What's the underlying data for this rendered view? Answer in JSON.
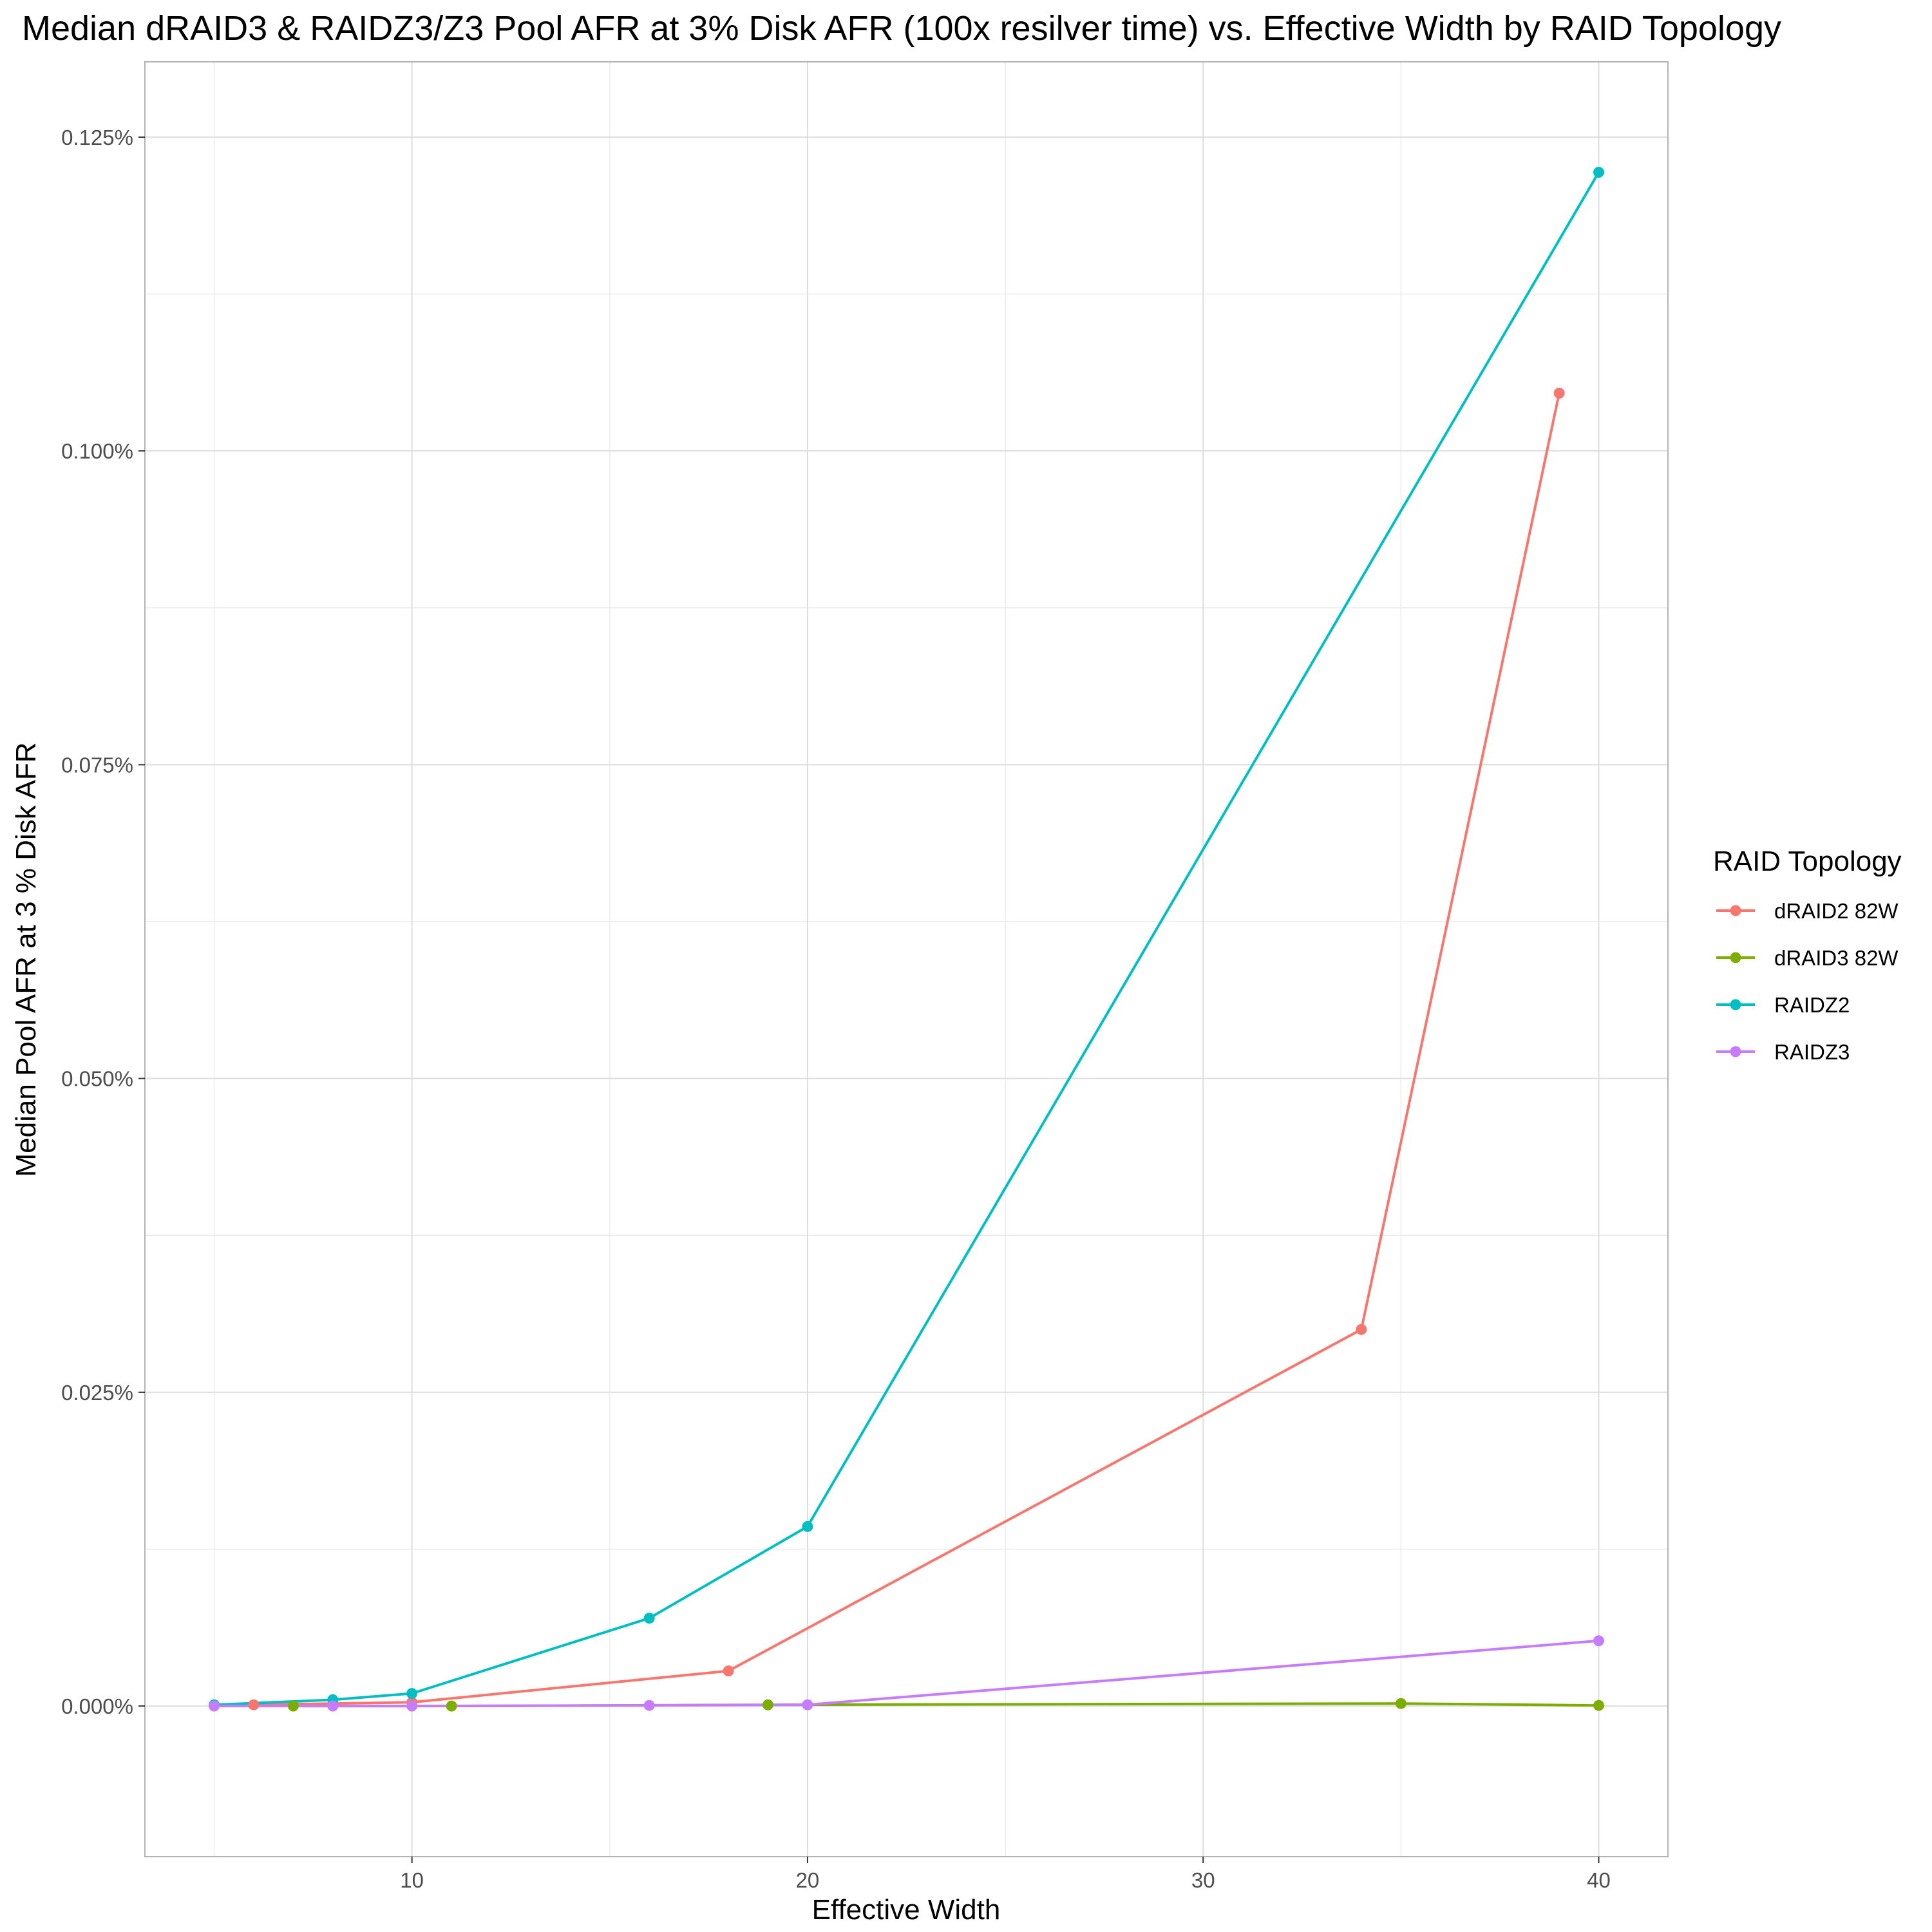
{
  "chart_data": {
    "type": "line",
    "title": "Median dRAID3 & RAIDZ3/Z3 Pool AFR at 3% Disk AFR  (100x resilver time) vs. Effective Width by RAID Topology",
    "xlabel": "Effective Width",
    "ylabel": "Median Pool AFR at  3 % Disk AFR",
    "xlim": [
      3.25,
      41.75
    ],
    "ylim": [
      -0.00012,
      0.00131
    ],
    "x_ticks": [
      10,
      20,
      30,
      40
    ],
    "x_tick_labels": [
      "10",
      "20",
      "30",
      "40"
    ],
    "y_ticks": [
      0,
      0.00025,
      0.0005,
      0.00075,
      0.001,
      0.00125
    ],
    "y_tick_labels": [
      "0.000%",
      "0.025%",
      "0.050%",
      "0.075%",
      "0.100%",
      "0.125%"
    ],
    "x_minor_ticks": [
      5,
      15,
      25,
      35
    ],
    "y_minor_ticks": [
      0.000125,
      0.000375,
      0.000625,
      0.000875,
      0.001125
    ],
    "grid": true,
    "legend": {
      "title": "RAID Topology",
      "placement": "right"
    },
    "series": [
      {
        "name": "dRAID2 82W",
        "color": "#F8766D",
        "points": [
          {
            "x": 6,
            "y": 1e-06
          },
          {
            "x": 10,
            "y": 3e-06
          },
          {
            "x": 18,
            "y": 2.8e-05
          },
          {
            "x": 34,
            "y": 0.0003
          },
          {
            "x": 39,
            "y": 0.001046
          }
        ]
      },
      {
        "name": "dRAID3 82W",
        "color": "#7CAE00",
        "points": [
          {
            "x": 7,
            "y": 0.0
          },
          {
            "x": 11,
            "y": 0.0
          },
          {
            "x": 19,
            "y": 1e-06
          },
          {
            "x": 35,
            "y": 2e-06
          },
          {
            "x": 40,
            "y": 5e-07
          }
        ]
      },
      {
        "name": "RAIDZ2",
        "color": "#00BFC4",
        "points": [
          {
            "x": 5,
            "y": 1e-06
          },
          {
            "x": 8,
            "y": 5e-06
          },
          {
            "x": 10,
            "y": 1e-05
          },
          {
            "x": 16,
            "y": 7e-05
          },
          {
            "x": 20,
            "y": 0.000143
          },
          {
            "x": 40,
            "y": 0.001222
          }
        ]
      },
      {
        "name": "RAIDZ3",
        "color": "#C77CFF",
        "points": [
          {
            "x": 5,
            "y": 0.0
          },
          {
            "x": 8,
            "y": 0.0
          },
          {
            "x": 10,
            "y": 0.0
          },
          {
            "x": 16,
            "y": 5e-07
          },
          {
            "x": 20,
            "y": 1e-06
          },
          {
            "x": 40,
            "y": 5.2e-05
          }
        ]
      }
    ]
  }
}
